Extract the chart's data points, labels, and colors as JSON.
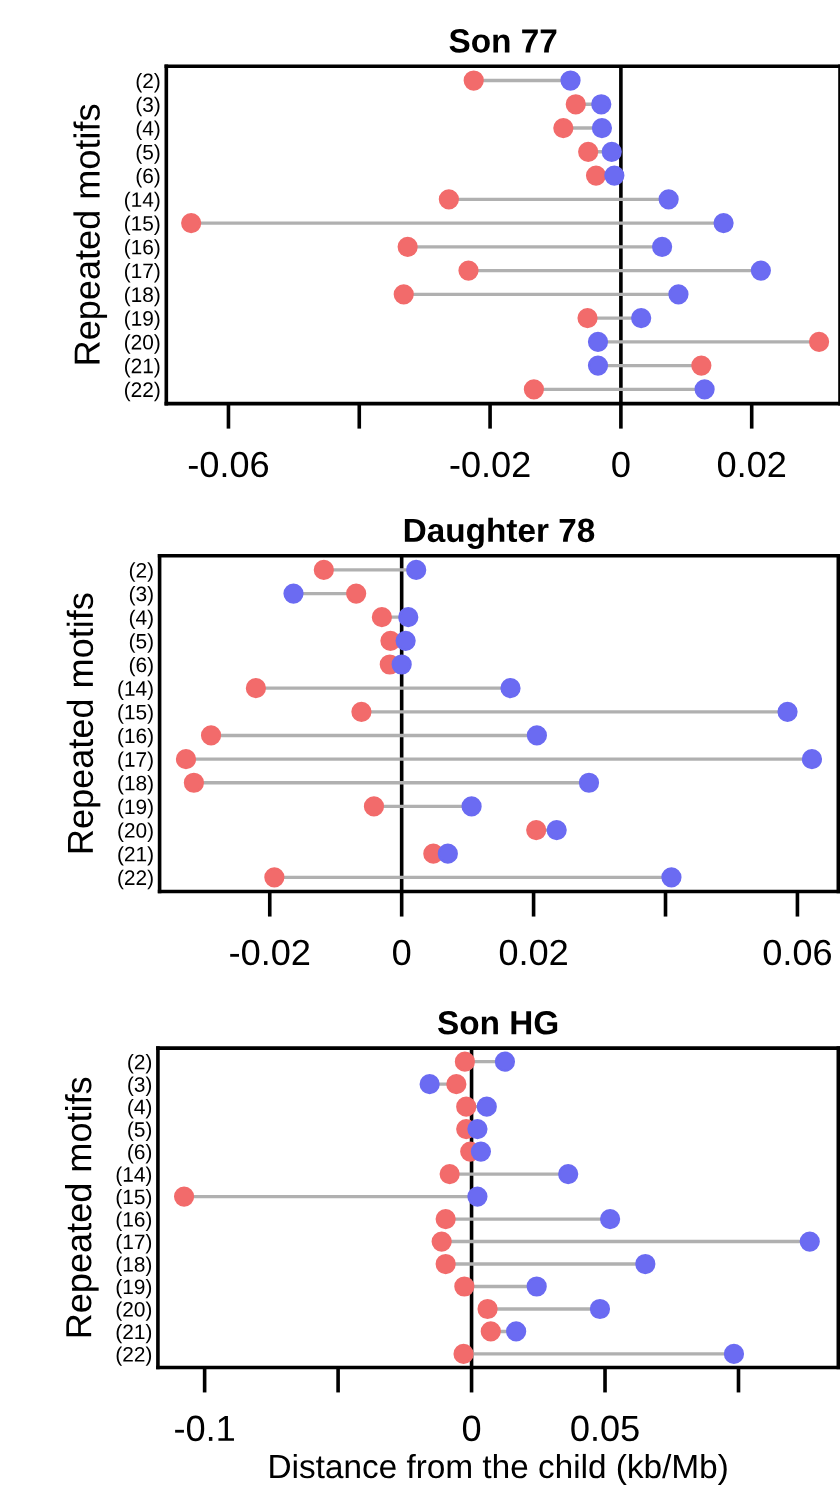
{
  "chart_data": [
    {
      "type": "scatter",
      "orientation": "horizontal",
      "title": "Son 77",
      "ylabel": "Repeated motifs",
      "marker": "circle",
      "grid": false,
      "legend": false,
      "categories": [
        "(2)",
        "(3)",
        "(4)",
        "(5)",
        "(6)",
        "(14)",
        "(15)",
        "(16)",
        "(17)",
        "(18)",
        "(19)",
        "(20)",
        "(21)",
        "(22)"
      ],
      "series": [
        {
          "color": "#f26b6b",
          "values": [
            -0.0225,
            -0.0069,
            -0.0088,
            -0.005,
            -0.0038,
            -0.0263,
            -0.0657,
            -0.0326,
            -0.0233,
            -0.0332,
            -0.0051,
            0.0303,
            0.0123,
            -0.0133
          ]
        },
        {
          "color": "#6b6bf2",
          "values": [
            -0.0077,
            -0.003,
            -0.0029,
            -0.0014,
            -0.001,
            0.0073,
            0.0157,
            0.0063,
            0.0214,
            0.0088,
            0.0031,
            -0.0035,
            -0.0035,
            0.0128
          ]
        }
      ],
      "xlim": [
        -0.0695,
        0.0335
      ],
      "xticks": [
        -0.06,
        {
          "value": -0.04,
          "label": null
        },
        -0.02,
        0,
        0.02
      ],
      "ref_lines": [
        {
          "axis": "x",
          "value": 0,
          "color": "#000000"
        }
      ]
    },
    {
      "type": "scatter",
      "orientation": "horizontal",
      "title": "Daughter 78",
      "ylabel": "Repeated motifs",
      "marker": "circle",
      "grid": false,
      "legend": false,
      "categories": [
        "(2)",
        "(3)",
        "(4)",
        "(5)",
        "(6)",
        "(14)",
        "(15)",
        "(16)",
        "(17)",
        "(18)",
        "(19)",
        "(20)",
        "(21)",
        "(22)"
      ],
      "series": [
        {
          "color": "#f26b6b",
          "values": [
            -0.0118,
            -0.0069,
            -0.003,
            -0.0017,
            -0.0018,
            -0.0221,
            -0.0061,
            -0.0289,
            -0.0327,
            -0.0315,
            -0.0042,
            0.0204,
            0.0048,
            -0.0193
          ]
        },
        {
          "color": "#6b6bf2",
          "values": [
            0.0022,
            -0.0164,
            0.001,
            0.0006,
            0.0,
            0.0165,
            0.0585,
            0.0205,
            0.0622,
            0.0284,
            0.0106,
            0.0235,
            0.007,
            0.0409
          ]
        }
      ],
      "xlim": [
        -0.0367,
        0.0662
      ],
      "xticks": [
        -0.02,
        0,
        0.02,
        {
          "value": 0.04,
          "label": null
        },
        0.06
      ],
      "ref_lines": [
        {
          "axis": "x",
          "value": 0,
          "color": "#000000"
        }
      ]
    },
    {
      "type": "scatter",
      "orientation": "horizontal",
      "title": "Son HG",
      "ylabel": "Repeated motifs",
      "xlabel": "Distance from the child (kb/Mb)",
      "marker": "circle",
      "grid": false,
      "legend": false,
      "categories": [
        "(2)",
        "(3)",
        "(4)",
        "(5)",
        "(6)",
        "(14)",
        "(15)",
        "(16)",
        "(17)",
        "(18)",
        "(19)",
        "(20)",
        "(21)",
        "(22)"
      ],
      "series": [
        {
          "color": "#f26b6b",
          "values": [
            -0.0025,
            -0.0057,
            -0.002,
            -0.002,
            -0.0005,
            -0.0082,
            -0.1077,
            -0.0097,
            -0.0112,
            -0.0097,
            -0.0027,
            0.006,
            0.0072,
            -0.003
          ]
        },
        {
          "color": "#6b6bf2",
          "values": [
            0.0125,
            -0.0157,
            0.0057,
            0.0022,
            0.0035,
            0.0362,
            0.0022,
            0.0519,
            0.1267,
            0.0651,
            0.0244,
            0.0481,
            0.0167,
            0.0983
          ]
        }
      ],
      "xlim": [
        -0.1175,
        0.1374
      ],
      "xticks": [
        -0.1,
        {
          "value": -0.05,
          "label": null
        },
        0,
        0.05,
        {
          "value": 0.1,
          "label": null
        }
      ],
      "ref_lines": [
        {
          "axis": "x",
          "value": 0,
          "color": "#000000"
        }
      ]
    }
  ]
}
